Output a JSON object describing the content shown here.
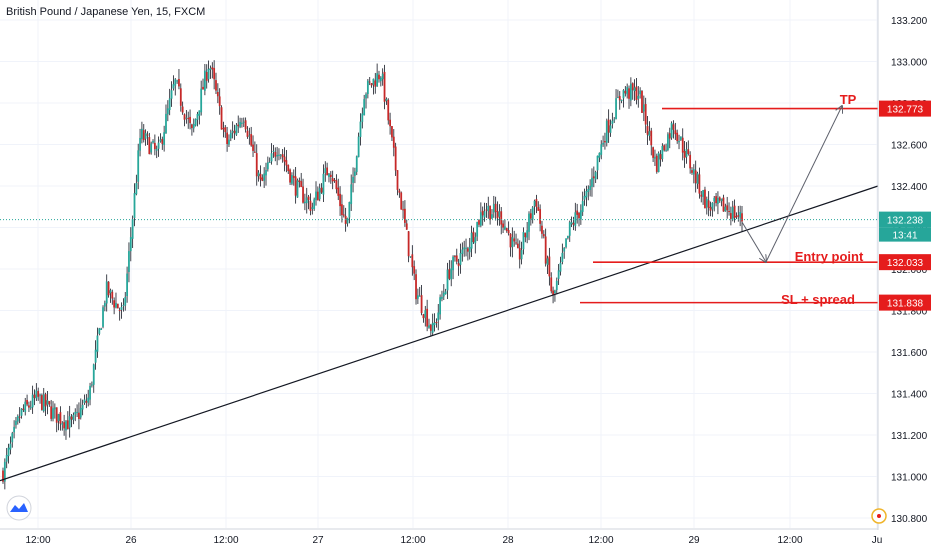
{
  "header": {
    "title": "British Pound / Japanese Yen, 15, FXCM"
  },
  "colors": {
    "up": "#26a69a",
    "down": "#c62828",
    "wick": "#131722",
    "level": "#e51c1c",
    "trend": "#131722",
    "price": "#26a69a",
    "grid": "#f0f3fa"
  },
  "chart_data": {
    "type": "candlestick",
    "title": "British Pound / Japanese Yen, 15, FXCM",
    "ylim": [
      130.76,
      133.25
    ],
    "grid": true,
    "y_ticks": [
      "133.200",
      "133.000",
      "132.800",
      "132.600",
      "132.400",
      "132.200",
      "132.000",
      "131.800",
      "131.600",
      "131.400",
      "131.200",
      "131.000",
      "130.800"
    ],
    "x_ticks": [
      "12:00",
      "26",
      "12:00",
      "27",
      "12:00",
      "28",
      "12:00",
      "29",
      "12:00",
      "Ju"
    ],
    "price_path": [
      131.02,
      131.3,
      131.38,
      131.3,
      131.25,
      131.38,
      131.9,
      131.78,
      132.65,
      132.55,
      132.9,
      132.65,
      133.0,
      132.6,
      132.75,
      132.4,
      132.6,
      132.4,
      132.3,
      132.5,
      132.2,
      132.85,
      132.95,
      132.4,
      131.9,
      131.7,
      132.0,
      132.1,
      132.3,
      132.25,
      132.05,
      132.35,
      131.85,
      132.2,
      132.35,
      132.65,
      132.85,
      132.85,
      132.5,
      132.7,
      132.5,
      132.3,
      132.3,
      132.24
    ],
    "candle_count": 400,
    "trendline": {
      "from": {
        "x": "25 07:00",
        "y": 130.98
      },
      "to": {
        "x": "29 20:00",
        "y": 132.4
      }
    },
    "levels": [
      {
        "name": "TP",
        "value": 132.773,
        "label": "132.773"
      },
      {
        "name": "Entry point",
        "value": 132.033,
        "label": "132.033"
      },
      {
        "name": "SL + spread",
        "value": 131.838,
        "label": "131.838"
      }
    ],
    "current_price": {
      "value": 132.238,
      "label": "132.238",
      "countdown": "13:41"
    },
    "annotations": [
      "TP",
      "Entry point",
      "SL + spread"
    ]
  }
}
